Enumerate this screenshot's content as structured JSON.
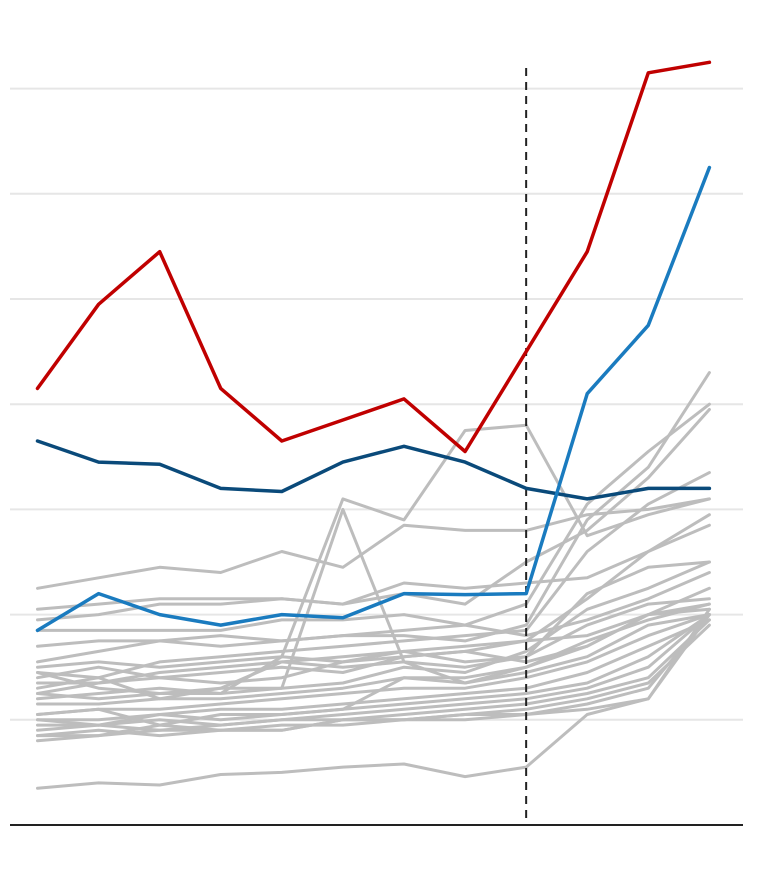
{
  "chart_data": {
    "type": "line",
    "x": [
      1,
      2,
      3,
      4,
      5,
      6,
      7,
      8,
      9,
      10,
      11,
      12
    ],
    "xlim": [
      0.55,
      12.55
    ],
    "ylim": [
      0,
      7
    ],
    "yticks": [
      1,
      2,
      3,
      4,
      5,
      6,
      7
    ],
    "grid": true,
    "axis_line_color": "#222222",
    "grid_color": "#e6e6e6",
    "reference_line": {
      "x": 9,
      "style": "dashed",
      "color": "#222222"
    },
    "background_series_color": "#bdbdbd",
    "background_series": [
      [
        2.25,
        2.35,
        2.45,
        2.4,
        2.6,
        2.45,
        2.85,
        2.8,
        2.8,
        2.95,
        3.0,
        3.1
      ],
      [
        2.05,
        2.1,
        2.15,
        2.15,
        2.15,
        2.1,
        2.3,
        2.25,
        2.3,
        2.35,
        2.6,
        2.85
      ],
      [
        1.95,
        2.0,
        2.1,
        2.1,
        2.15,
        2.1,
        2.2,
        2.1,
        2.5,
        2.8,
        3.3,
        3.95
      ],
      [
        1.85,
        1.85,
        1.85,
        1.85,
        1.95,
        1.95,
        2.0,
        1.9,
        2.1,
        3.05,
        3.55,
        4.0
      ],
      [
        1.55,
        1.65,
        1.75,
        1.8,
        1.75,
        1.8,
        1.8,
        1.75,
        1.9,
        2.9,
        3.4,
        4.3
      ],
      [
        1.3,
        1.4,
        1.55,
        1.6,
        1.65,
        1.7,
        1.75,
        1.8,
        1.85,
        2.6,
        3.05,
        3.35
      ],
      [
        1.25,
        1.35,
        1.45,
        1.5,
        1.55,
        1.6,
        1.65,
        1.7,
        1.75,
        2.15,
        2.6,
        2.95
      ],
      [
        1.45,
        1.3,
        1.25,
        1.25,
        1.6,
        3.1,
        2.9,
        3.75,
        3.8,
        2.75,
        2.95,
        3.1
      ],
      [
        1.45,
        1.4,
        1.2,
        1.3,
        1.3,
        3.0,
        1.55,
        1.5,
        1.6,
        2.2,
        2.45,
        2.5
      ],
      [
        1.25,
        1.2,
        1.25,
        1.3,
        1.55,
        1.5,
        1.55,
        1.35,
        1.45,
        1.6,
        1.9,
        2.0
      ],
      [
        1.15,
        1.15,
        1.2,
        1.2,
        1.25,
        1.3,
        1.4,
        1.35,
        1.5,
        1.7,
        2.0,
        2.05
      ],
      [
        1.05,
        1.1,
        1.1,
        1.15,
        1.2,
        1.25,
        1.3,
        1.3,
        1.4,
        1.55,
        1.8,
        2.0
      ],
      [
        1.0,
        1.0,
        1.05,
        1.1,
        1.1,
        1.15,
        1.2,
        1.25,
        1.3,
        1.45,
        1.7,
        1.95
      ],
      [
        1.0,
        0.95,
        1.05,
        1.0,
        1.05,
        1.1,
        1.15,
        1.2,
        1.25,
        1.35,
        1.6,
        2.0
      ],
      [
        0.95,
        0.95,
        1.0,
        0.95,
        1.0,
        1.05,
        1.1,
        1.15,
        1.2,
        1.3,
        1.5,
        2.0
      ],
      [
        0.9,
        0.95,
        0.9,
        0.95,
        1.0,
        1.0,
        1.05,
        1.1,
        1.15,
        1.25,
        1.4,
        1.95
      ],
      [
        0.85,
        0.9,
        0.85,
        0.9,
        0.95,
        0.95,
        1.0,
        1.05,
        1.1,
        1.2,
        1.35,
        1.9
      ],
      [
        0.85,
        0.85,
        0.9,
        0.9,
        0.9,
        1.0,
        1.0,
        1.0,
        1.05,
        1.15,
        1.3,
        2.0
      ],
      [
        1.5,
        1.55,
        1.5,
        1.55,
        1.6,
        1.55,
        1.6,
        1.65,
        1.75,
        1.8,
        2.0,
        2.1
      ],
      [
        1.35,
        1.35,
        1.4,
        1.45,
        1.5,
        1.45,
        1.6,
        1.65,
        1.55,
        1.7,
        2.0,
        2.25
      ],
      [
        1.7,
        1.75,
        1.75,
        1.7,
        1.75,
        1.8,
        1.85,
        1.9,
        1.8,
        1.95,
        2.15,
        2.4
      ],
      [
        1.4,
        1.5,
        1.4,
        1.35,
        1.4,
        1.55,
        1.65,
        1.55,
        1.6,
        1.9,
        2.1,
        2.15
      ],
      [
        1.2,
        1.25,
        1.3,
        1.25,
        1.3,
        1.35,
        1.5,
        1.45,
        1.65,
        2.05,
        2.25,
        2.5
      ],
      [
        1.05,
        1.1,
        0.95,
        1.05,
        1.05,
        1.1,
        1.4,
        1.4,
        1.5,
        1.75,
        1.95,
        2.1
      ],
      [
        0.8,
        0.85,
        0.95,
        0.9,
        0.9,
        1.0,
        1.0,
        1.05,
        1.05,
        1.1,
        1.2,
        2.05
      ],
      [
        0.35,
        0.4,
        0.38,
        0.48,
        0.5,
        0.55,
        0.58,
        0.46,
        0.55,
        1.05,
        1.2,
        2.0
      ]
    ],
    "series": [
      {
        "color": "#c00000",
        "values": [
          4.15,
          4.95,
          5.45,
          4.15,
          3.65,
          3.85,
          4.05,
          3.55,
          4.5,
          5.45,
          7.15,
          7.25
        ]
      },
      {
        "color": "#0a4a7a",
        "values": [
          3.65,
          3.45,
          3.43,
          3.2,
          3.17,
          3.45,
          3.6,
          3.45,
          3.2,
          3.1,
          3.2,
          3.2
        ]
      },
      {
        "color": "#1a7bbf",
        "values": [
          1.85,
          2.2,
          2.0,
          1.9,
          2.0,
          1.97,
          2.2,
          2.19,
          2.2,
          4.1,
          4.75,
          6.25
        ]
      }
    ]
  }
}
